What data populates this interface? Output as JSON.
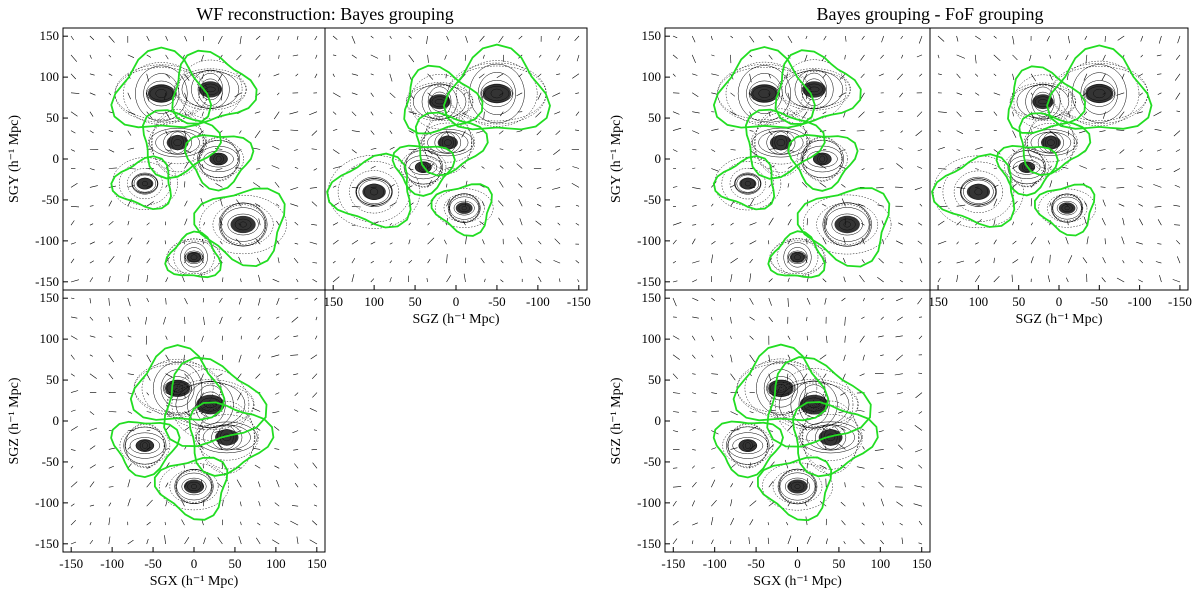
{
  "chart_data": [
    {
      "type": "heatmap",
      "title": "WF reconstruction: Bayes grouping",
      "panels": [
        {
          "id": "xy",
          "xlabel": "",
          "ylabel": "SGY (h⁻¹ Mpc)",
          "xlim": [
            -160,
            160
          ],
          "ylim": [
            -160,
            160
          ],
          "xticks": [],
          "yticks": [
            150,
            100,
            50,
            0,
            -50,
            -100,
            -150
          ],
          "x_reversed": false
        },
        {
          "id": "zy",
          "xlabel": "SGZ (h⁻¹ Mpc)",
          "ylabel": "",
          "xlim": [
            160,
            -160
          ],
          "ylim": [
            -160,
            160
          ],
          "xticks": [
            150,
            100,
            50,
            0,
            -50,
            -100,
            -150
          ],
          "yticks": [],
          "x_reversed": true
        },
        {
          "id": "xz",
          "xlabel": "SGX (h⁻¹ Mpc)",
          "ylabel": "SGZ (h⁻¹ Mpc)",
          "xlim": [
            -160,
            160
          ],
          "ylim": [
            -160,
            160
          ],
          "xticks": [
            -150,
            -100,
            -50,
            0,
            50,
            100,
            150
          ],
          "yticks": [
            150,
            100,
            50,
            0,
            -50,
            -100,
            -150
          ],
          "x_reversed": false
        }
      ]
    },
    {
      "type": "heatmap",
      "title": "Bayes grouping - FoF grouping",
      "panels": [
        {
          "id": "xy",
          "xlabel": "",
          "ylabel": "SGY (h⁻¹ Mpc)",
          "xlim": [
            -160,
            160
          ],
          "ylim": [
            -160,
            160
          ],
          "xticks": [],
          "yticks": [
            150,
            100,
            50,
            0,
            -50,
            -100,
            -150
          ],
          "x_reversed": false
        },
        {
          "id": "zy",
          "xlabel": "SGZ (h⁻¹ Mpc)",
          "ylabel": "",
          "xlim": [
            160,
            -160
          ],
          "ylim": [
            -160,
            160
          ],
          "xticks": [
            150,
            100,
            50,
            0,
            -50,
            -100,
            -150
          ],
          "yticks": [],
          "x_reversed": true
        },
        {
          "id": "xz",
          "xlabel": "SGX (h⁻¹ Mpc)",
          "ylabel": "SGZ (h⁻¹ Mpc)",
          "xlim": [
            -160,
            160
          ],
          "ylim": [
            -160,
            160
          ],
          "xticks": [
            -150,
            -100,
            -50,
            0,
            50,
            100,
            150
          ],
          "yticks": [
            150,
            100,
            50,
            0,
            -50,
            -100,
            -150
          ],
          "x_reversed": false
        }
      ]
    }
  ],
  "colors": {
    "zero_contour": "#22dd22",
    "density": "#111111",
    "contour": "#000000",
    "background": "#ffffff"
  }
}
